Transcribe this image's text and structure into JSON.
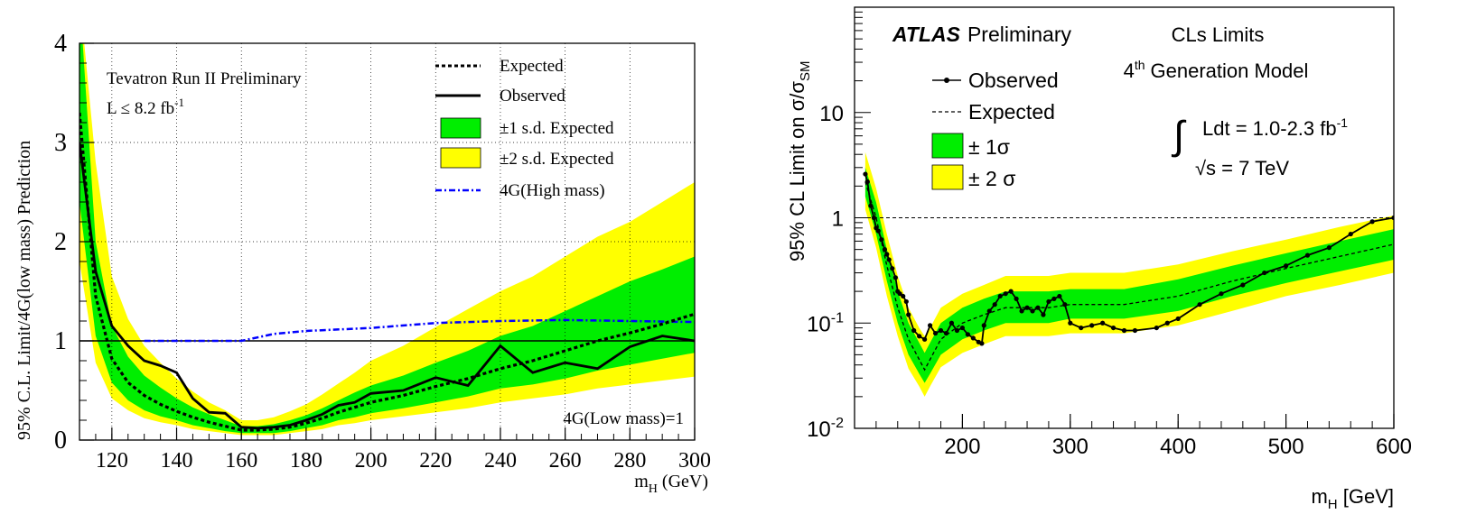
{
  "chart_data": [
    {
      "type": "line",
      "xlabel": "m",
      "xlabel_sub": "H",
      "xlabel_unit": " (GeV)",
      "ylabel": "95% C.L. Limit/4G(low mass) Prediction",
      "xlim": [
        110,
        300
      ],
      "ylim": [
        0,
        4
      ],
      "x_ticks": [
        120,
        140,
        160,
        180,
        200,
        220,
        240,
        260,
        280,
        300
      ],
      "y_ticks": [
        0,
        1,
        2,
        3,
        4
      ],
      "grid": true,
      "legend_position": "top-right",
      "annotations": {
        "line1": "Tevatron Run II Preliminary",
        "lumi_prefix": "L ≤ 8.2 fb",
        "lumi_sup": "-1",
        "low_mass": "4G(Low mass)=1"
      },
      "legend": {
        "expected": "Expected",
        "observed": "Observed",
        "band1": "±1 s.d. Expected",
        "band2": "±2 s.d. Expected",
        "high_mass": "4G(High mass)"
      },
      "reference_line": 1,
      "colors": {
        "band1": "#00ee00",
        "band2": "#ffff00",
        "high_mass": "#0000ff",
        "line": "#000000"
      },
      "x": [
        110,
        115,
        120,
        125,
        130,
        135,
        140,
        145,
        150,
        155,
        160,
        165,
        170,
        175,
        180,
        185,
        190,
        195,
        200,
        210,
        220,
        230,
        240,
        250,
        260,
        270,
        280,
        290,
        300
      ],
      "series": [
        {
          "name": "Observed",
          "values": [
            3.0,
            1.7,
            1.15,
            0.95,
            0.8,
            0.75,
            0.68,
            0.42,
            0.28,
            0.27,
            0.13,
            0.12,
            0.13,
            0.15,
            0.2,
            0.26,
            0.35,
            0.38,
            0.47,
            0.5,
            0.63,
            0.55,
            0.95,
            0.68,
            0.78,
            0.72,
            0.94,
            1.05,
            1.0
          ]
        },
        {
          "name": "Expected",
          "values": [
            3.3,
            1.45,
            0.82,
            0.58,
            0.45,
            0.36,
            0.29,
            0.23,
            0.18,
            0.14,
            0.1,
            0.1,
            0.11,
            0.13,
            0.17,
            0.22,
            0.28,
            0.33,
            0.38,
            0.45,
            0.54,
            0.62,
            0.72,
            0.8,
            0.9,
            1.0,
            1.08,
            1.17,
            1.27
          ]
        },
        {
          "name": "±1 s.d. Expected",
          "lower": [
            2.4,
            1.05,
            0.58,
            0.4,
            0.3,
            0.24,
            0.2,
            0.15,
            0.12,
            0.09,
            0.07,
            0.07,
            0.07,
            0.09,
            0.12,
            0.15,
            0.2,
            0.23,
            0.27,
            0.32,
            0.38,
            0.44,
            0.52,
            0.56,
            0.62,
            0.7,
            0.76,
            0.82,
            0.88
          ],
          "upper": [
            4.5,
            2.0,
            1.15,
            0.84,
            0.65,
            0.53,
            0.42,
            0.33,
            0.26,
            0.2,
            0.14,
            0.14,
            0.16,
            0.2,
            0.25,
            0.32,
            0.4,
            0.48,
            0.55,
            0.65,
            0.78,
            0.9,
            1.05,
            1.15,
            1.3,
            1.45,
            1.6,
            1.72,
            1.85
          ]
        },
        {
          "name": "±2 s.d. Expected",
          "lower": [
            1.8,
            0.78,
            0.42,
            0.3,
            0.22,
            0.18,
            0.15,
            0.11,
            0.09,
            0.07,
            0.05,
            0.05,
            0.05,
            0.07,
            0.09,
            0.11,
            0.15,
            0.17,
            0.2,
            0.24,
            0.28,
            0.32,
            0.38,
            0.42,
            0.46,
            0.52,
            0.56,
            0.6,
            0.64
          ]
        },
        {
          "name": "±2 s.d. Expected (upper)",
          "upper": [
            6.0,
            2.8,
            1.65,
            1.22,
            0.95,
            0.78,
            0.62,
            0.49,
            0.38,
            0.3,
            0.2,
            0.2,
            0.23,
            0.29,
            0.36,
            0.46,
            0.57,
            0.68,
            0.8,
            0.95,
            1.14,
            1.32,
            1.5,
            1.65,
            1.85,
            2.05,
            2.2,
            2.4,
            2.6
          ]
        },
        {
          "name": "4G(High mass)",
          "x": [
            130,
            160,
            170,
            180,
            200,
            220,
            240,
            260,
            280,
            300
          ],
          "values": [
            1.0,
            1.0,
            1.07,
            1.1,
            1.13,
            1.18,
            1.2,
            1.21,
            1.2,
            1.19
          ]
        }
      ]
    },
    {
      "type": "line",
      "xlabel": "m",
      "xlabel_sub": "H",
      "xlabel_unit": " [GeV]",
      "ylabel": "95% CL Limit on σ/σ",
      "ylabel_sub": "SM",
      "xlim": [
        100,
        600
      ],
      "ylim": [
        0.01,
        100
      ],
      "log_y": true,
      "x_ticks": [
        200,
        300,
        400,
        500,
        600
      ],
      "y_ticks": [
        0.01,
        0.1,
        1,
        10
      ],
      "y_tick_labels": [
        {
          "base": "10",
          "exp": "-2"
        },
        {
          "base": "10",
          "exp": "-1"
        },
        {
          "base": "1",
          "exp": ""
        },
        {
          "base": "10",
          "exp": ""
        }
      ],
      "grid": false,
      "legend_position": "top-left",
      "annotations": {
        "atlas": "ATLAS",
        "preliminary": "Preliminary",
        "cls": "CLs Limits",
        "gen_sup": "th",
        "gen_num": "4",
        "gen_text": "Generation Model",
        "integral": "∫",
        "lumi_prefix": "Ldt = 1.0-2.3 fb",
        "lumi_sup": "-1",
        "sqrt": "√s = 7 TeV"
      },
      "legend": {
        "observed": "Observed",
        "expected": "Expected",
        "band1": "± 1σ",
        "band2": "± 2 σ"
      },
      "reference_line": 1,
      "colors": {
        "band1": "#00ee00",
        "band2": "#ffff00",
        "line": "#000000"
      },
      "x": [
        110,
        120,
        130,
        140,
        150,
        160,
        165,
        170,
        180,
        200,
        220,
        240,
        260,
        280,
        300,
        350,
        400,
        450,
        500,
        550,
        600
      ],
      "series": [
        {
          "name": "Expected",
          "values": [
            2.2,
            1.0,
            0.35,
            0.14,
            0.07,
            0.045,
            0.036,
            0.045,
            0.07,
            0.1,
            0.12,
            0.14,
            0.14,
            0.14,
            0.15,
            0.15,
            0.18,
            0.25,
            0.33,
            0.43,
            0.56
          ]
        },
        {
          "name": "± 1σ",
          "lower": [
            1.6,
            0.7,
            0.25,
            0.1,
            0.05,
            0.033,
            0.027,
            0.033,
            0.05,
            0.07,
            0.085,
            0.1,
            0.1,
            0.1,
            0.11,
            0.11,
            0.13,
            0.18,
            0.24,
            0.31,
            0.4
          ],
          "upper": [
            3.0,
            1.4,
            0.5,
            0.2,
            0.1,
            0.065,
            0.052,
            0.065,
            0.1,
            0.14,
            0.17,
            0.2,
            0.2,
            0.2,
            0.21,
            0.21,
            0.26,
            0.35,
            0.46,
            0.6,
            0.78
          ]
        },
        {
          "name": "± 2 σ",
          "lower": [
            1.2,
            0.52,
            0.18,
            0.075,
            0.037,
            0.025,
            0.02,
            0.025,
            0.038,
            0.052,
            0.063,
            0.075,
            0.075,
            0.075,
            0.08,
            0.08,
            0.095,
            0.13,
            0.18,
            0.23,
            0.3
          ],
          "upper": [
            4.2,
            1.9,
            0.7,
            0.28,
            0.14,
            0.09,
            0.075,
            0.09,
            0.14,
            0.19,
            0.23,
            0.28,
            0.28,
            0.28,
            0.3,
            0.3,
            0.36,
            0.48,
            0.62,
            0.82,
            1.05
          ]
        },
        {
          "name": "Observed",
          "x": [
            110,
            112,
            115,
            118,
            120,
            122,
            125,
            128,
            130,
            132,
            135,
            138,
            140,
            142,
            145,
            148,
            150,
            155,
            160,
            165,
            170,
            175,
            180,
            185,
            190,
            195,
            200,
            205,
            210,
            215,
            218,
            220,
            225,
            230,
            235,
            240,
            245,
            250,
            255,
            260,
            265,
            270,
            275,
            280,
            285,
            290,
            295,
            300,
            310,
            320,
            330,
            340,
            350,
            360,
            380,
            390,
            400,
            420,
            440,
            460,
            480,
            500,
            520,
            540,
            560,
            580,
            600
          ],
          "values": [
            2.6,
            2.2,
            1.3,
            1.0,
            0.8,
            0.75,
            0.62,
            0.5,
            0.45,
            0.4,
            0.33,
            0.27,
            0.2,
            0.19,
            0.18,
            0.16,
            0.12,
            0.085,
            0.075,
            0.07,
            0.095,
            0.08,
            0.085,
            0.08,
            0.1,
            0.085,
            0.09,
            0.078,
            0.072,
            0.066,
            0.064,
            0.095,
            0.13,
            0.15,
            0.18,
            0.19,
            0.2,
            0.17,
            0.13,
            0.14,
            0.13,
            0.14,
            0.12,
            0.16,
            0.17,
            0.18,
            0.15,
            0.1,
            0.09,
            0.095,
            0.1,
            0.09,
            0.085,
            0.085,
            0.09,
            0.1,
            0.11,
            0.15,
            0.19,
            0.23,
            0.3,
            0.35,
            0.44,
            0.52,
            0.7,
            0.92,
            1.0
          ]
        }
      ]
    }
  ]
}
